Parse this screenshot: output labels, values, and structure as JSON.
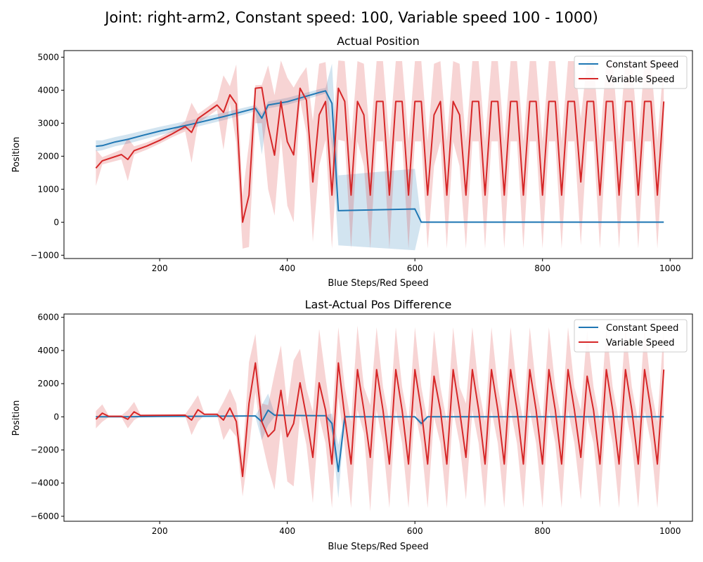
{
  "figure": {
    "suptitle": "Joint: right-arm2, Constant speed: 100, Variable speed 100 - 1000)"
  },
  "colors": {
    "constant": "#1f77b4",
    "variable": "#d62728",
    "constant_band": "#1f77b4",
    "variable_band": "#d62728"
  },
  "chart_data": [
    {
      "type": "line",
      "title": "Actual Position",
      "xlabel": "Blue Steps/Red Speed",
      "ylabel": "Position",
      "xlim": [
        50,
        1035
      ],
      "ylim": [
        -1100,
        5200
      ],
      "xticks": [
        200,
        400,
        600,
        800,
        1000
      ],
      "yticks": [
        -1000,
        0,
        1000,
        2000,
        3000,
        4000,
        5000
      ],
      "grid": false,
      "legend_position": "upper right",
      "series": [
        {
          "name": "Constant Speed",
          "x": [
            100,
            110,
            130,
            150,
            175,
            200,
            250,
            300,
            350,
            360,
            370,
            400,
            450,
            460,
            470,
            480,
            600,
            610,
            620,
            700,
            800,
            900,
            990
          ],
          "y": [
            2300,
            2320,
            2430,
            2510,
            2640,
            2760,
            2970,
            3200,
            3450,
            3150,
            3550,
            3650,
            3930,
            3980,
            3600,
            350,
            400,
            0,
            0,
            0,
            0,
            0,
            0
          ],
          "band_low": [
            2150,
            2180,
            2300,
            2380,
            2510,
            2640,
            2850,
            3090,
            3360,
            2050,
            3450,
            3560,
            3840,
            3900,
            2300,
            -700,
            -850,
            0,
            0,
            0,
            0,
            0,
            0
          ],
          "band_high": [
            2480,
            2480,
            2580,
            2660,
            2780,
            2890,
            3100,
            3320,
            3550,
            3300,
            3660,
            3770,
            4030,
            4070,
            4800,
            1420,
            1620,
            0,
            0,
            0,
            0,
            0,
            0
          ]
        },
        {
          "name": "Variable Speed",
          "x": [
            100,
            110,
            140,
            150,
            160,
            180,
            200,
            220,
            240,
            250,
            260,
            290,
            300,
            310,
            320,
            330,
            340,
            350,
            360,
            370,
            380,
            390,
            400,
            410,
            420,
            430,
            440,
            450,
            460,
            470,
            480,
            490,
            500,
            510,
            520,
            530,
            540,
            550,
            560,
            570,
            580,
            590,
            600,
            610,
            620,
            630,
            640,
            650,
            660,
            670,
            680,
            690,
            700,
            710,
            720,
            730,
            740,
            750,
            760,
            770,
            780,
            790,
            800,
            810,
            820,
            830,
            840,
            850,
            860,
            870,
            880,
            890,
            900,
            910,
            920,
            930,
            940,
            950,
            960,
            970,
            980,
            990
          ],
          "y": [
            1640,
            1860,
            2050,
            1900,
            2170,
            2310,
            2480,
            2680,
            2900,
            2720,
            3140,
            3550,
            3330,
            3860,
            3580,
            0,
            820,
            4060,
            4080,
            2900,
            2030,
            3660,
            2440,
            2040,
            4060,
            3700,
            1220,
            3250,
            3660,
            820,
            4060,
            3660,
            820,
            3660,
            3250,
            820,
            3660,
            3660,
            820,
            3660,
            3660,
            820,
            3660,
            3660,
            820,
            3250,
            3660,
            820,
            3660,
            3250,
            820,
            3660,
            3660,
            820,
            3660,
            3660,
            820,
            3660,
            3660,
            820,
            3660,
            3660,
            820,
            3660,
            3660,
            820,
            3660,
            3660,
            1220,
            3660,
            3660,
            820,
            3660,
            3660,
            820,
            3660,
            3660,
            820,
            3660,
            3660,
            820,
            3660
          ],
          "band_low": [
            1100,
            1750,
            1900,
            1250,
            2050,
            2200,
            2380,
            2580,
            2750,
            1800,
            3000,
            3400,
            2200,
            3600,
            2400,
            -800,
            -750,
            3000,
            3000,
            1000,
            200,
            2600,
            500,
            0,
            3700,
            2700,
            -600,
            1700,
            2500,
            -800,
            2500,
            2450,
            -800,
            2450,
            1700,
            -800,
            2450,
            2450,
            -800,
            2450,
            2450,
            -800,
            2450,
            2450,
            -800,
            1700,
            2450,
            -800,
            2450,
            1700,
            -800,
            2450,
            2450,
            -800,
            2450,
            2450,
            -800,
            2450,
            2450,
            -800,
            2450,
            2450,
            -800,
            2450,
            2450,
            -800,
            2450,
            2450,
            -700,
            2450,
            2450,
            -800,
            2450,
            2450,
            -800,
            2450,
            2450,
            -800,
            2450,
            2450,
            -800,
            2450
          ],
          "band_high": [
            2200,
            1970,
            2200,
            2550,
            2300,
            2420,
            2580,
            2780,
            3050,
            3620,
            3280,
            3700,
            4450,
            4120,
            4780,
            800,
            2400,
            4150,
            4160,
            4750,
            3850,
            4900,
            4380,
            4080,
            4420,
            4700,
            3060,
            4800,
            4850,
            2450,
            4900,
            4880,
            2450,
            4880,
            4800,
            2450,
            4880,
            4880,
            2450,
            4880,
            4880,
            2450,
            4880,
            4880,
            2450,
            4800,
            4880,
            2450,
            4880,
            4800,
            2450,
            4880,
            4880,
            2450,
            4880,
            4880,
            2450,
            4880,
            4880,
            2450,
            4880,
            4880,
            2450,
            4880,
            4880,
            2450,
            4880,
            4880,
            3150,
            4880,
            4880,
            2450,
            4880,
            4880,
            2450,
            4880,
            4880,
            2450,
            4880,
            4880,
            2450,
            4880
          ]
        }
      ]
    },
    {
      "type": "line",
      "title": "Last-Actual Pos Difference",
      "xlabel": "Blue Steps/Red Speed",
      "ylabel": "Position",
      "xlim": [
        50,
        1035
      ],
      "ylim": [
        -6300,
        6200
      ],
      "xticks": [
        200,
        400,
        600,
        800,
        1000
      ],
      "yticks": [
        -6000,
        -4000,
        -2000,
        0,
        2000,
        4000,
        6000
      ],
      "grid": false,
      "legend_position": "upper right",
      "series": [
        {
          "name": "Constant Speed",
          "x": [
            100,
            150,
            200,
            250,
            300,
            340,
            350,
            360,
            370,
            380,
            400,
            450,
            460,
            470,
            480,
            490,
            500,
            600,
            610,
            620,
            700,
            800,
            900,
            990
          ],
          "y": [
            0,
            0,
            20,
            30,
            40,
            50,
            50,
            -300,
            400,
            100,
            80,
            70,
            70,
            -400,
            -3300,
            0,
            0,
            0,
            -400,
            0,
            0,
            0,
            0,
            0
          ],
          "band_low": [
            0,
            0,
            20,
            30,
            40,
            50,
            0,
            -1400,
            -500,
            0,
            60,
            50,
            40,
            -1000,
            -4900,
            -100,
            0,
            0,
            -600,
            0,
            0,
            0,
            0,
            0
          ],
          "band_high": [
            0,
            0,
            20,
            30,
            40,
            50,
            100,
            700,
            1400,
            200,
            100,
            90,
            100,
            200,
            -1700,
            100,
            0,
            0,
            -200,
            0,
            0,
            0,
            0,
            0
          ]
        },
        {
          "name": "Variable Speed",
          "x": [
            100,
            110,
            120,
            140,
            150,
            160,
            170,
            240,
            250,
            260,
            270,
            290,
            300,
            310,
            320,
            330,
            340,
            350,
            360,
            370,
            380,
            390,
            400,
            410,
            420,
            430,
            440,
            450,
            460,
            470,
            480,
            490,
            500,
            510,
            520,
            530,
            540,
            550,
            560,
            570,
            580,
            590,
            600,
            610,
            620,
            630,
            640,
            650,
            660,
            670,
            680,
            690,
            700,
            710,
            720,
            730,
            740,
            750,
            760,
            770,
            780,
            790,
            800,
            810,
            820,
            830,
            840,
            850,
            860,
            870,
            880,
            890,
            900,
            910,
            920,
            930,
            940,
            950,
            960,
            970,
            980,
            990
          ],
          "y": [
            -150,
            220,
            30,
            30,
            -150,
            300,
            80,
            100,
            -200,
            430,
            150,
            150,
            -200,
            530,
            -280,
            -3600,
            800,
            3250,
            -300,
            -1200,
            -800,
            1600,
            -1200,
            -400,
            2050,
            0,
            -2450,
            2050,
            400,
            -2850,
            3250,
            0,
            -2850,
            2850,
            400,
            -2450,
            2850,
            400,
            -2850,
            2850,
            400,
            -2850,
            2850,
            400,
            -2850,
            2450,
            400,
            -2850,
            2850,
            400,
            -2450,
            2850,
            400,
            -2850,
            2850,
            400,
            -2850,
            2850,
            400,
            -2850,
            2850,
            400,
            -2850,
            2850,
            400,
            -2850,
            2850,
            400,
            -2450,
            2450,
            400,
            -2850,
            2850,
            400,
            -2850,
            2850,
            400,
            -2850,
            2850,
            400,
            -2850,
            2850
          ],
          "band_low": [
            -700,
            -300,
            -30,
            -30,
            -700,
            -200,
            20,
            50,
            -1100,
            -300,
            100,
            100,
            -1400,
            -700,
            -1200,
            -4800,
            -1900,
            1500,
            -1400,
            -3100,
            -4400,
            -700,
            -3900,
            -4200,
            100,
            -1700,
            -5200,
            0,
            -1600,
            -5500,
            1200,
            -1800,
            -5500,
            400,
            -1000,
            -5700,
            400,
            -1600,
            -5500,
            400,
            -1600,
            -5500,
            400,
            -1600,
            -5500,
            0,
            -1600,
            -5500,
            400,
            -1600,
            -5000,
            400,
            -1600,
            -5500,
            400,
            -1600,
            -5500,
            400,
            -1600,
            -5500,
            400,
            -1600,
            -5500,
            400,
            -1600,
            -5500,
            400,
            -1600,
            -5000,
            0,
            -1600,
            -5500,
            400,
            -1600,
            -5500,
            400,
            -1600,
            -5500,
            400,
            -1600,
            -5500,
            400
          ],
          "band_high": [
            350,
            750,
            90,
            90,
            400,
            900,
            140,
            150,
            700,
            1300,
            200,
            200,
            900,
            1700,
            800,
            -2400,
            3300,
            5000,
            800,
            700,
            2600,
            4300,
            600,
            3400,
            4100,
            1700,
            300,
            5300,
            2400,
            -300,
            5400,
            1800,
            -300,
            5500,
            1800,
            700,
            5400,
            1800,
            -300,
            5400,
            1800,
            -300,
            5400,
            1800,
            -300,
            5200,
            1800,
            -300,
            5400,
            1800,
            800,
            5400,
            1800,
            -300,
            5400,
            1800,
            -300,
            5400,
            1800,
            -300,
            5400,
            1800,
            -300,
            5400,
            1800,
            -300,
            5400,
            1800,
            400,
            5200,
            1800,
            -300,
            5400,
            1800,
            -300,
            5400,
            1800,
            -300,
            5400,
            1800,
            -300,
            5400
          ]
        }
      ]
    }
  ]
}
